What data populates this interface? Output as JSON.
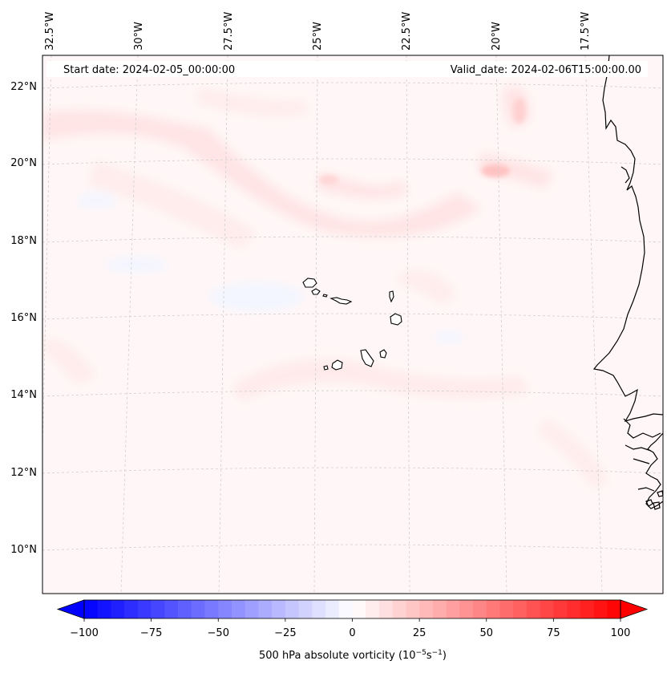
{
  "map": {
    "start_date_label": "Start date: 2024-02-05_00:00:00",
    "valid_date_label": "Valid_date: 2024-02-06T15:00:00.00",
    "lon_labels": [
      "32.5°W",
      "30°W",
      "27.5°W",
      "25°W",
      "22.5°W",
      "20°W",
      "17.5°W"
    ],
    "lat_labels": [
      "22°N",
      "20°N",
      "18°N",
      "16°N",
      "14°N",
      "12°N",
      "10°N"
    ],
    "land_feature": "Cape Verde islands and West African coastline"
  },
  "colorbar": {
    "label_text": "500 hPa absolute vorticity (10",
    "label_exp1": "−5",
    "label_mid": "s",
    "label_exp2": "−1",
    "label_close": ")",
    "min": -100,
    "max": 100,
    "step": 5,
    "tick_values": [
      -100,
      -75,
      -50,
      -25,
      0,
      25,
      50,
      75,
      100
    ],
    "tick_labels": [
      "−100",
      "−75",
      "−50",
      "−25",
      "0",
      "25",
      "50",
      "75",
      "100"
    ],
    "color_negative": "#0000ff",
    "color_zero": "#ffffff",
    "color_positive": "#ff0000"
  },
  "colors": {
    "field_background": "#fff7f7",
    "coastline": "#000000",
    "gridline": "#cfcfcf"
  }
}
